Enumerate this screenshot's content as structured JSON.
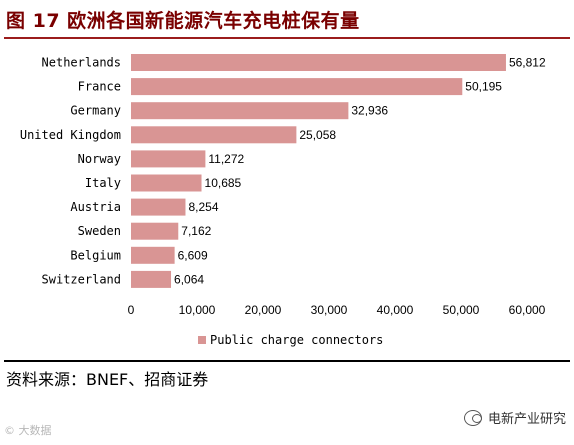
{
  "figure": {
    "title": "图 17 欧洲各国新能源汽车充电桩保有量",
    "source": "资料来源：BNEF、招商证券",
    "brand": "电新产业研究",
    "watermark": "© 大数据"
  },
  "colors": {
    "bar": "#d99594",
    "title": "#7a0000",
    "rule": "#9b1c1c"
  },
  "chart_data": {
    "type": "bar",
    "orientation": "horizontal",
    "categories": [
      "Netherlands",
      "France",
      "Germany",
      "United Kingdom",
      "Norway",
      "Italy",
      "Austria",
      "Sweden",
      "Belgium",
      "Switzerland"
    ],
    "series": [
      {
        "name": "Public charge connectors",
        "values": [
          56812,
          50195,
          32936,
          25058,
          11272,
          10685,
          8254,
          7162,
          6609,
          6064
        ]
      }
    ],
    "value_labels": [
      "56,812",
      "50,195",
      "32,936",
      "25,058",
      "11,272",
      "10,685",
      "8,254",
      "7,162",
      "6,609",
      "6,064"
    ],
    "xlim": [
      0,
      60000
    ],
    "xticks": [
      0,
      10000,
      20000,
      30000,
      40000,
      50000,
      60000
    ],
    "xtick_labels": [
      "0",
      "10,000",
      "20,000",
      "30,000",
      "40,000",
      "50,000",
      "60,000"
    ],
    "grid": false,
    "legend": "bottom"
  }
}
